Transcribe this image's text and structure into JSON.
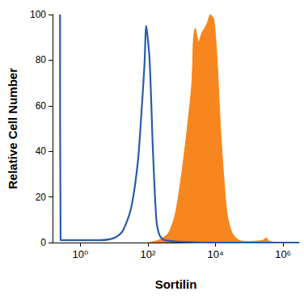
{
  "chart_data": {
    "type": "line",
    "x_label": "Sortilin",
    "y_label": "Relative Cell Number",
    "log": "x",
    "grid": false,
    "xlim": [
      0.15,
      3000000
    ],
    "xticks": [
      {
        "value": 1,
        "label": "10⁰"
      },
      {
        "value": 100,
        "label": "10²"
      },
      {
        "value": 10000,
        "label": "10⁴"
      },
      {
        "value": 1000000,
        "label": "10⁶"
      }
    ],
    "ylim": [
      0,
      100
    ],
    "yticks": [
      0,
      20,
      40,
      60,
      80,
      100
    ],
    "series": [
      {
        "type": "area",
        "color": "#f7861e",
        "x": [
          100,
          200,
          398,
          631,
          891,
          1259,
          1585,
          1995,
          2239,
          2512,
          3162,
          3981,
          5623,
          7079,
          8913,
          11220,
          14125,
          17783,
          22387,
          31623,
          50119,
          100000,
          251189,
          316228,
          398107,
          1000000,
          3000000
        ],
        "values": [
          0,
          1,
          4,
          12,
          25,
          42,
          55,
          70,
          90,
          94,
          88,
          92,
          96,
          100,
          98,
          80,
          50,
          28,
          12,
          4,
          1,
          0.5,
          1,
          2,
          0.5,
          0,
          0
        ]
      },
      {
        "type": "line",
        "color": "#2b5ca8",
        "x": [
          0.25,
          0.26,
          1,
          3.16,
          10,
          17.8,
          31.6,
          50,
          63,
          79,
          89,
          112,
          141,
          178,
          224,
          316,
          1000,
          10000,
          3000000
        ],
        "values": [
          100,
          1,
          1,
          1,
          2,
          5,
          15,
          35,
          55,
          78,
          95,
          80,
          40,
          10,
          3,
          1,
          0.3,
          0,
          0
        ]
      }
    ]
  }
}
